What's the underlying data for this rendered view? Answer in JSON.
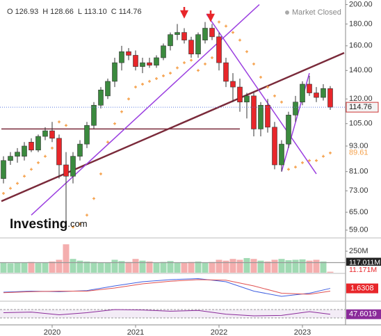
{
  "chart_data": {
    "type": "candlestick",
    "status": "Market Closed",
    "brand": [
      "Investing",
      ".com"
    ],
    "ohlc_names": [
      "O",
      "H",
      "L",
      "C"
    ],
    "last_labels": [
      "126.93",
      "128.66",
      "113.10",
      "114.76"
    ],
    "categories": [
      null,
      null,
      null,
      null,
      null,
      null,
      null,
      "2020",
      null,
      null,
      null,
      null,
      null,
      null,
      null,
      null,
      null,
      null,
      null,
      "2021",
      null,
      null,
      null,
      null,
      null,
      null,
      null,
      null,
      null,
      null,
      null,
      "2022",
      null,
      null,
      null,
      null,
      null,
      null,
      null,
      null,
      null,
      null,
      null,
      "2023",
      null,
      null,
      null,
      null
    ],
    "open": [
      78,
      86,
      88,
      88,
      95,
      91,
      98,
      101,
      97,
      84,
      79,
      88,
      94,
      104,
      116,
      122,
      132,
      146,
      155,
      152,
      143,
      146,
      144,
      150,
      160,
      170,
      172,
      165,
      153,
      165,
      176,
      168,
      146,
      132,
      128,
      118,
      122,
      102,
      116,
      103,
      84,
      94,
      110,
      118,
      130,
      124,
      121,
      126.93
    ],
    "high": [
      88,
      90,
      92,
      95,
      97,
      99,
      103,
      106,
      99,
      90,
      90,
      96,
      106,
      118,
      128,
      134,
      150,
      160,
      158,
      156,
      150,
      150,
      152,
      162,
      172,
      180,
      176,
      168,
      172,
      182,
      180,
      172,
      150,
      138,
      134,
      124,
      124,
      118,
      120,
      106,
      96,
      112,
      122,
      132,
      136,
      128,
      130,
      128.66
    ],
    "low": [
      76,
      84,
      85,
      86,
      90,
      90,
      96,
      95,
      78,
      61,
      76,
      86,
      92,
      102,
      114,
      120,
      128,
      140,
      148,
      140,
      138,
      142,
      142,
      148,
      156,
      165,
      162,
      150,
      150,
      162,
      165,
      140,
      128,
      118,
      112,
      108,
      98,
      98,
      100,
      82,
      81,
      92,
      106,
      116,
      122,
      118,
      119,
      113.1
    ],
    "close": [
      86,
      88,
      90,
      93,
      91,
      98,
      101,
      97,
      84,
      79,
      88,
      94,
      104,
      116,
      126,
      132,
      146,
      155,
      152,
      143,
      146,
      144,
      150,
      160,
      170,
      172,
      165,
      153,
      170,
      176,
      168,
      146,
      132,
      128,
      118,
      122,
      102,
      116,
      103,
      84,
      94,
      110,
      118,
      130,
      124,
      121,
      127,
      114.76
    ],
    "up_color": "#3b8a3e",
    "down_color": "#e8262a",
    "ylim": [
      57,
      205
    ],
    "log_scale": true,
    "yticks": [
      {
        "value": 200,
        "label": "200.00"
      },
      {
        "value": 180,
        "label": "180.00"
      },
      {
        "value": 160,
        "label": "160.00"
      },
      {
        "value": 140,
        "label": "140.00"
      },
      {
        "value": 120,
        "label": "120.00"
      },
      {
        "value": 105,
        "label": "105.00"
      },
      {
        "value": 93,
        "label": "93.00"
      },
      {
        "value": 81,
        "label": "81.00"
      },
      {
        "value": 73,
        "label": "73.00"
      },
      {
        "value": 65,
        "label": "65.00"
      },
      {
        "value": 59,
        "label": "59.00"
      }
    ],
    "sar": {
      "color": "#f5a04a",
      "last_label": "89.61",
      "values": [
        72,
        74,
        76,
        79,
        82,
        85,
        88,
        92,
        106,
        104,
        60,
        61,
        64,
        70,
        80,
        95,
        105,
        112,
        120,
        128,
        130,
        132,
        134,
        136,
        138,
        142,
        146,
        148,
        140,
        145,
        150,
        182,
        178,
        172,
        165,
        155,
        145,
        135,
        128,
        122,
        118,
        82,
        83,
        85,
        86,
        86,
        88,
        89.61
      ]
    },
    "trendlines": [
      {
        "color": "#7a2a3a",
        "width": 1.5,
        "x": [
          -0.3,
          34
        ],
        "y": [
          102,
          102
        ]
      },
      {
        "color": "#7a2a3a",
        "width": 2.5,
        "x": [
          -0.3,
          49
        ],
        "y": [
          69,
          154
        ]
      },
      {
        "color": "#9b3fe0",
        "width": 1.5,
        "x": [
          4,
          36.8
        ],
        "y": [
          64,
          200
        ]
      },
      {
        "color": "#9b3fe0",
        "width": 1.5,
        "x": [
          29.2,
          45
        ],
        "y": [
          190,
          80
        ]
      },
      {
        "color": "#9b3fe0",
        "width": 1.5,
        "x": [
          40,
          44
        ],
        "y": [
          81,
          138
        ]
      }
    ],
    "volume": {
      "ylim": [
        0,
        380
      ],
      "yticks": [
        {
          "value": 250,
          "label": "250M"
        }
      ],
      "average": 117.011,
      "average_label": "117.011M",
      "last_label": "11.171M",
      "values": [
        120,
        110,
        115,
        118,
        125,
        112,
        120,
        130,
        150,
        330,
        160,
        140,
        130,
        125,
        120,
        118,
        150,
        135,
        125,
        160,
        140,
        130,
        120,
        125,
        135,
        120,
        115,
        125,
        130,
        120,
        125,
        150,
        140,
        160,
        150,
        170,
        160,
        140,
        130,
        150,
        160,
        145,
        150,
        155,
        140,
        150,
        130,
        11.171
      ]
    },
    "macd": {
      "ylim": [
        -10,
        14
      ],
      "last_label": "1.6308",
      "x": [
        0,
        4,
        8,
        12,
        16,
        20,
        24,
        28,
        32,
        36,
        40,
        44,
        47
      ],
      "series": [
        {
          "color": "#3f5fe0",
          "values": [
            -2,
            -1,
            -1.5,
            -0.5,
            4,
            8,
            10,
            11,
            8,
            -1,
            -6,
            -3,
            1.6308
          ]
        },
        {
          "color": "#e05050",
          "values": [
            -2.5,
            -1.5,
            -1,
            -1,
            2,
            6,
            8.5,
            10,
            9.5,
            4,
            -3,
            -4,
            -1
          ]
        }
      ]
    },
    "rsi": {
      "ylim": [
        0,
        100
      ],
      "levels": [
        30,
        70
      ],
      "color": "#8a2a9a",
      "last_label": "47.6019",
      "x": [
        0,
        4,
        8,
        12,
        16,
        20,
        24,
        28,
        32,
        36,
        40,
        44,
        47
      ],
      "values": [
        55,
        58,
        45,
        55,
        70,
        68,
        62,
        66,
        48,
        40,
        42,
        60,
        47.6019
      ]
    }
  }
}
